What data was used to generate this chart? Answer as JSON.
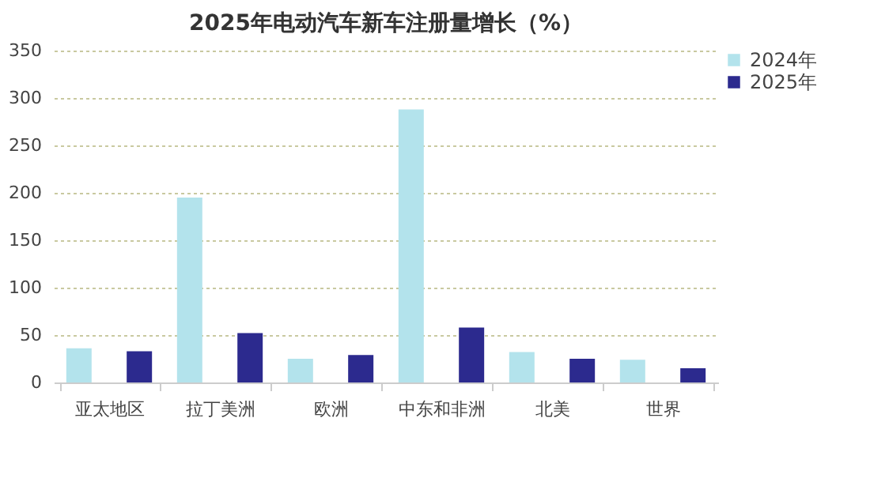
{
  "chart_data": {
    "type": "bar",
    "title": "2025年电动汽车新车注册量增长（%）",
    "categories": [
      "亚太地区",
      "拉丁美洲",
      "欧洲",
      "中东和非洲",
      "北美",
      "世界"
    ],
    "series": [
      {
        "name": "2024年",
        "color": "#b3e3ec",
        "values": [
          36,
          195,
          25,
          288,
          32,
          24
        ]
      },
      {
        "name": "2025年",
        "color": "#2c2a8e",
        "values": [
          33,
          52,
          29,
          58,
          25,
          15
        ]
      }
    ],
    "ylim": [
      0,
      350
    ],
    "yticks": [
      0,
      50,
      100,
      150,
      200,
      250,
      300,
      350
    ],
    "grid": "y",
    "legend": "right"
  }
}
